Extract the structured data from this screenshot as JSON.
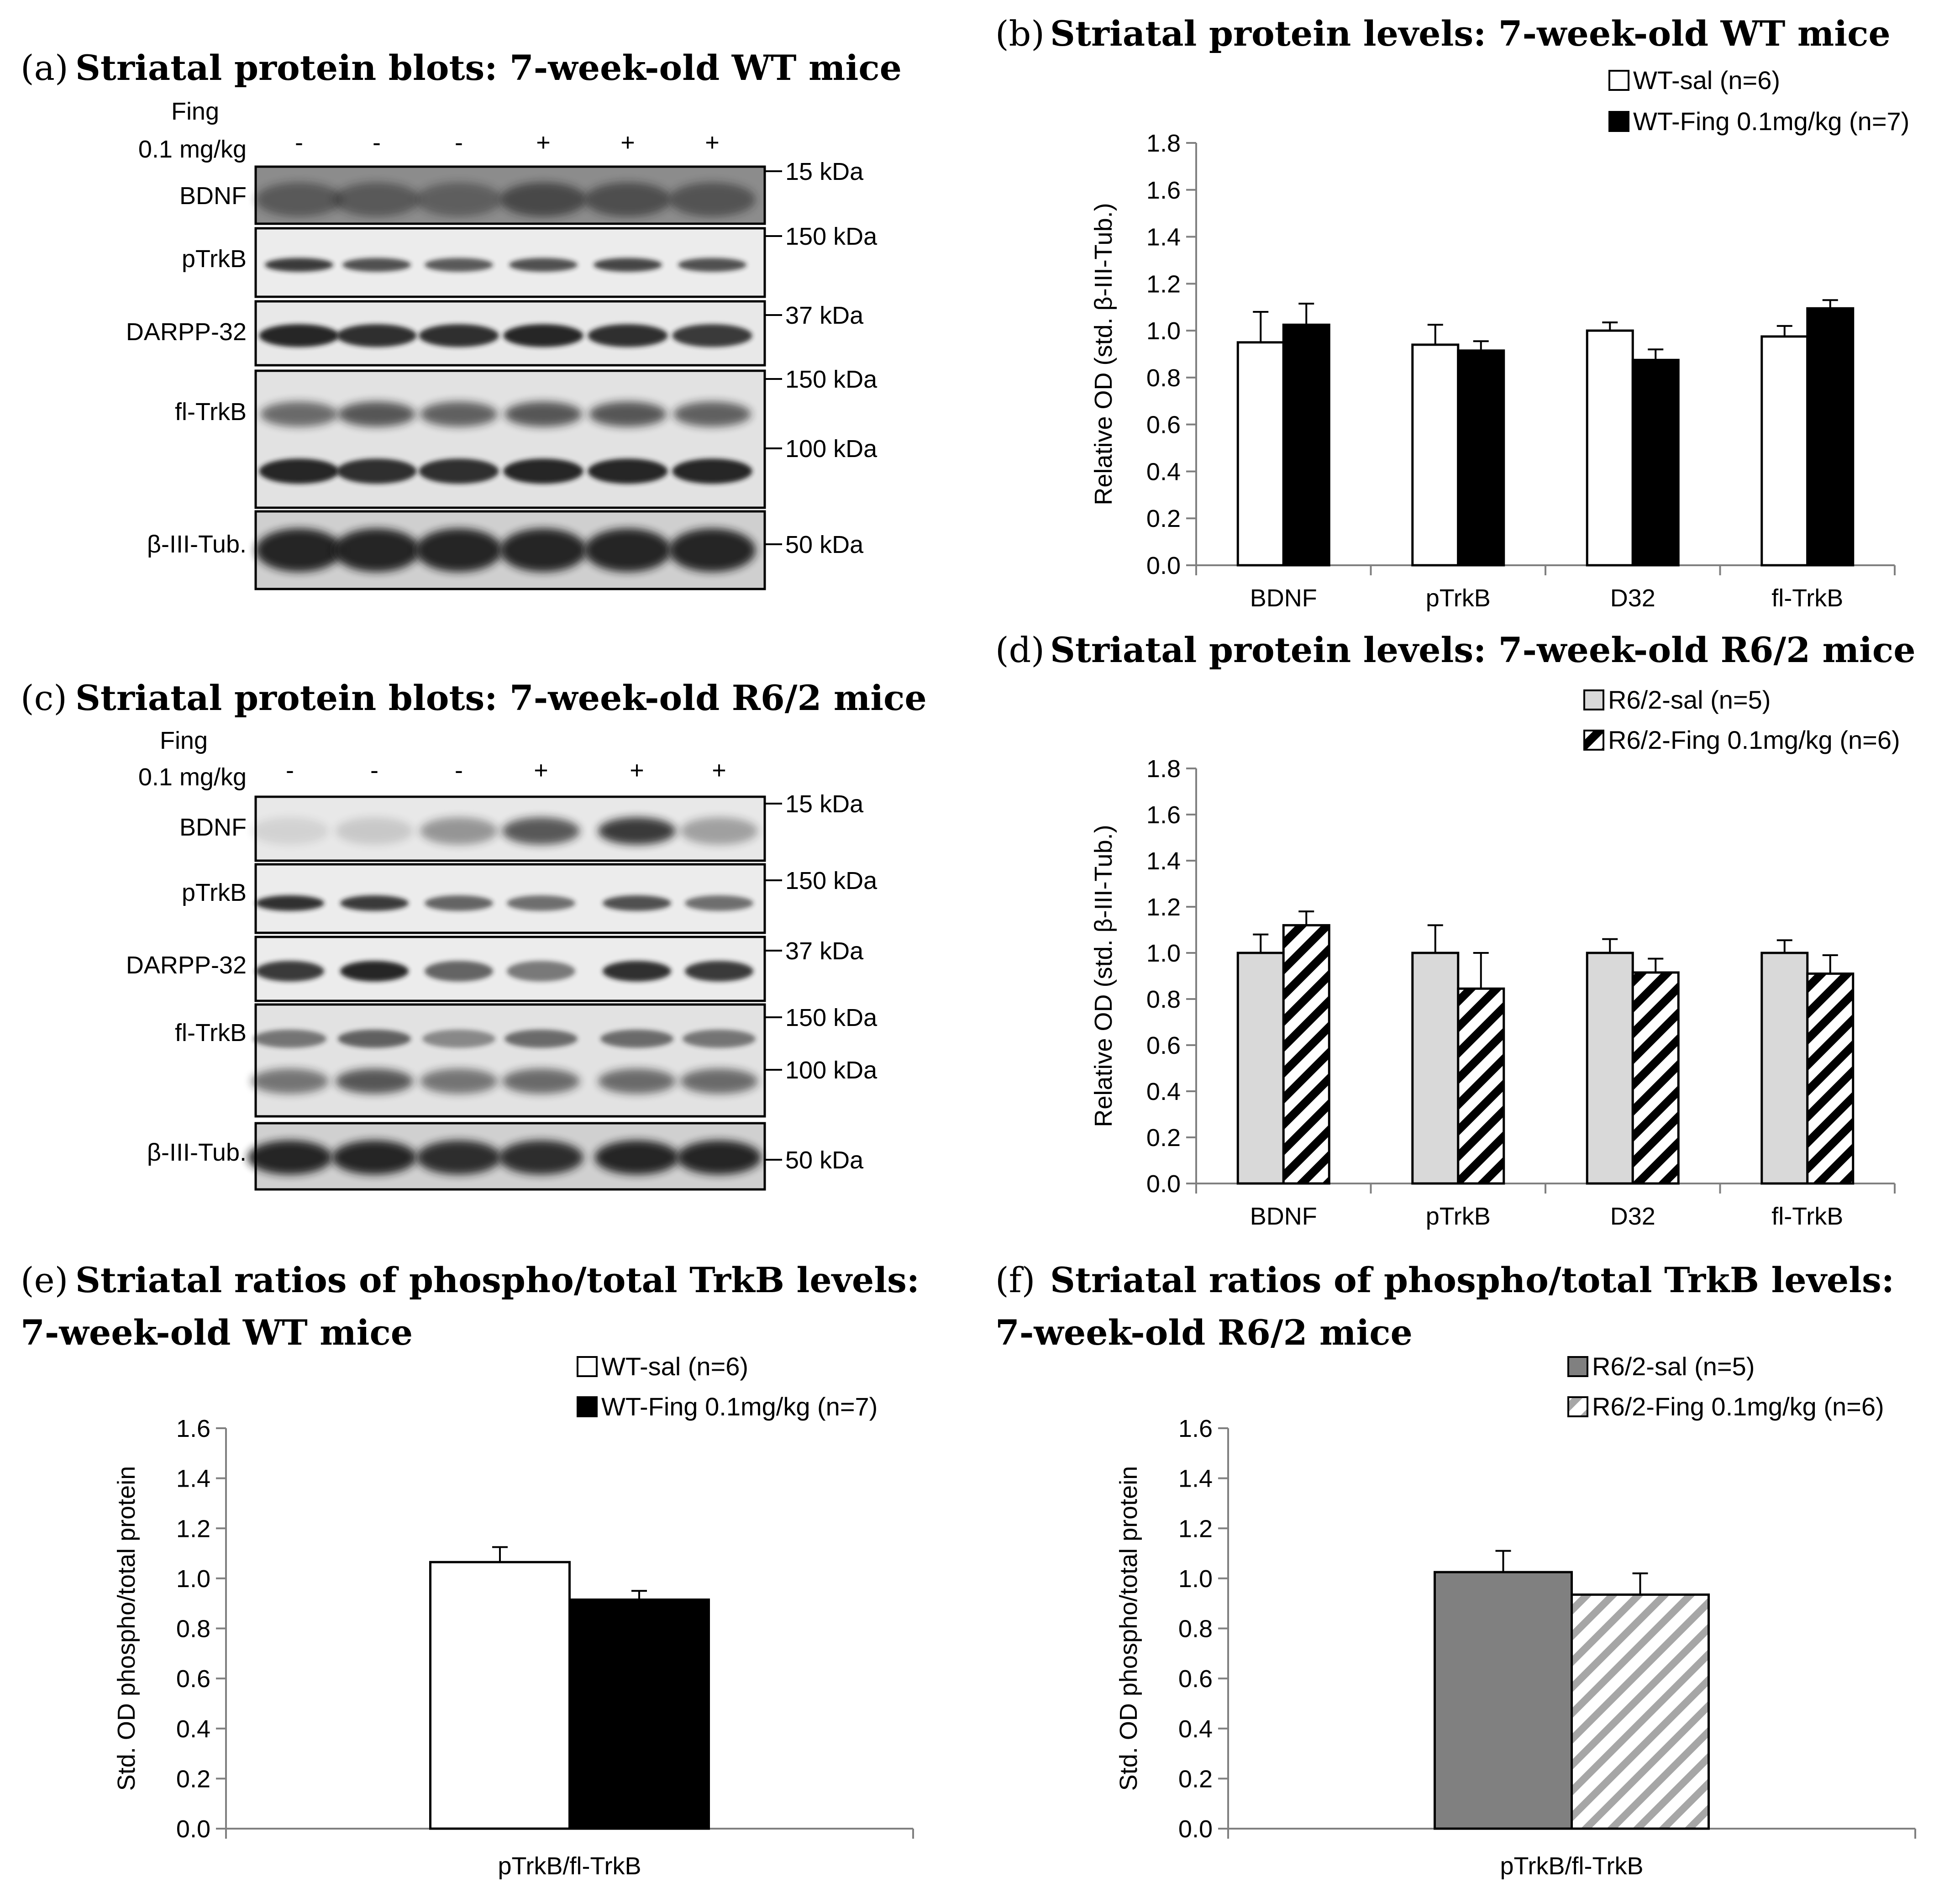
{
  "panels": {
    "a": {
      "letter": "(a)",
      "title": "Striatal protein blots: 7-week-old WT mice",
      "treatment_line1": "Fing",
      "treatment_line2": "0.1 mg/kg",
      "lane_signs": [
        "-",
        "-",
        "-",
        "+",
        "+",
        "+"
      ],
      "bands": [
        "BDNF",
        "pTrkB",
        "DARPP-32",
        "fl-TrkB",
        "β-III-Tub."
      ],
      "markers": [
        "15 kDa",
        "150 kDa",
        "37 kDa",
        "150 kDa",
        "100 kDa",
        "50 kDa"
      ]
    },
    "c": {
      "letter": "(c)",
      "title": "Striatal protein blots: 7-week-old R6/2 mice",
      "treatment_line1": "Fing",
      "treatment_line2": "0.1 mg/kg",
      "lane_signs": [
        "-",
        "-",
        "-",
        "+",
        "+",
        "+"
      ],
      "bands": [
        "BDNF",
        "pTrkB",
        "DARPP-32",
        "fl-TrkB",
        "β-III-Tub."
      ],
      "markers": [
        "15 kDa",
        "150 kDa",
        "37 kDa",
        "150 kDa",
        "100 kDa",
        "50 kDa"
      ]
    },
    "b": {
      "letter": "(b)",
      "title": "Striatal protein levels: 7-week-old WT mice"
    },
    "d": {
      "letter": "(d)",
      "title": "Striatal protein levels: 7-week-old R6/2 mice"
    },
    "e": {
      "letter": "(e)",
      "title_line1": "Striatal ratios of phospho/total TrkB levels:",
      "title_line2": "7-week-old WT mice"
    },
    "f": {
      "letter": "(f)",
      "title_line1": "Striatal ratios of phospho/total TrkB levels:",
      "title_line2": "7-week-old R6/2 mice"
    }
  },
  "colors": {
    "wt_sal": "#ffffff",
    "wt_fing": "#000000",
    "r62_sal_light": "#d9d9d9",
    "r62_sal_dark": "#808080",
    "r62_fing_hatch": "#000000",
    "r62_fing_hatch_light": "#b0b0b0",
    "axis": "#808080",
    "text": "#000000"
  },
  "chart_data": [
    {
      "id": "b",
      "type": "bar",
      "categories": [
        "BDNF",
        "pTrkB",
        "D32",
        "fl-TrkB"
      ],
      "series": [
        {
          "name": "WT-sal (n=6)",
          "values": [
            0.95,
            0.94,
            1.0,
            0.975
          ],
          "errors": [
            0.13,
            0.085,
            0.035,
            0.045
          ],
          "style": "white"
        },
        {
          "name": "WT-Fing 0.1mg/kg (n=7)",
          "values": [
            1.025,
            0.915,
            0.875,
            1.095
          ],
          "errors": [
            0.09,
            0.04,
            0.045,
            0.035
          ],
          "style": "black"
        }
      ],
      "ylabel": "Relative OD (std. β-III-Tub.)",
      "ylim": [
        0,
        1.8
      ],
      "yticks": [
        "0.0",
        "0.2",
        "0.4",
        "0.6",
        "0.8",
        "1.0",
        "1.2",
        "1.4",
        "1.6",
        "1.8"
      ]
    },
    {
      "id": "d",
      "type": "bar",
      "categories": [
        "BDNF",
        "pTrkB",
        "D32",
        "fl-TrkB"
      ],
      "series": [
        {
          "name": "R6/2-sal (n=5)",
          "values": [
            1.0,
            1.0,
            1.0,
            1.0
          ],
          "errors": [
            0.08,
            0.12,
            0.06,
            0.055
          ],
          "style": "lightgray"
        },
        {
          "name": "R6/2-Fing 0.1mg/kg (n=6)",
          "values": [
            1.12,
            0.845,
            0.915,
            0.91
          ],
          "errors": [
            0.06,
            0.155,
            0.06,
            0.08
          ],
          "style": "hatch-black"
        }
      ],
      "ylabel": "Relative OD (std. β-III-Tub.)",
      "ylim": [
        0,
        1.8
      ],
      "yticks": [
        "0.0",
        "0.2",
        "0.4",
        "0.6",
        "0.8",
        "1.0",
        "1.2",
        "1.4",
        "1.6",
        "1.8"
      ]
    },
    {
      "id": "e",
      "type": "bar",
      "categories": [
        "pTrkB/fl-TrkB"
      ],
      "series": [
        {
          "name": "WT-sal (n=6)",
          "values": [
            1.065
          ],
          "errors": [
            0.06
          ],
          "style": "white"
        },
        {
          "name": "WT-Fing 0.1mg/kg (n=7)",
          "values": [
            0.915
          ],
          "errors": [
            0.035
          ],
          "style": "black"
        }
      ],
      "ylabel": "Std. OD phospho/total protein",
      "ylim": [
        0,
        1.6
      ],
      "yticks": [
        "0.0",
        "0.2",
        "0.4",
        "0.6",
        "0.8",
        "1.0",
        "1.2",
        "1.4",
        "1.6"
      ]
    },
    {
      "id": "f",
      "type": "bar",
      "categories": [
        "pTrkB/fl-TrkB"
      ],
      "series": [
        {
          "name": "R6/2-sal (n=5)",
          "values": [
            1.025
          ],
          "errors": [
            0.085
          ],
          "style": "darkgray"
        },
        {
          "name": "R6/2-Fing 0.1mg/kg (n=6)",
          "values": [
            0.935
          ],
          "errors": [
            0.085
          ],
          "style": "hatch-light"
        }
      ],
      "ylabel": "Std. OD phospho/total protein",
      "ylim": [
        0,
        1.6
      ],
      "yticks": [
        "0.0",
        "0.2",
        "0.4",
        "0.6",
        "0.8",
        "1.0",
        "1.2",
        "1.4",
        "1.6"
      ]
    }
  ]
}
